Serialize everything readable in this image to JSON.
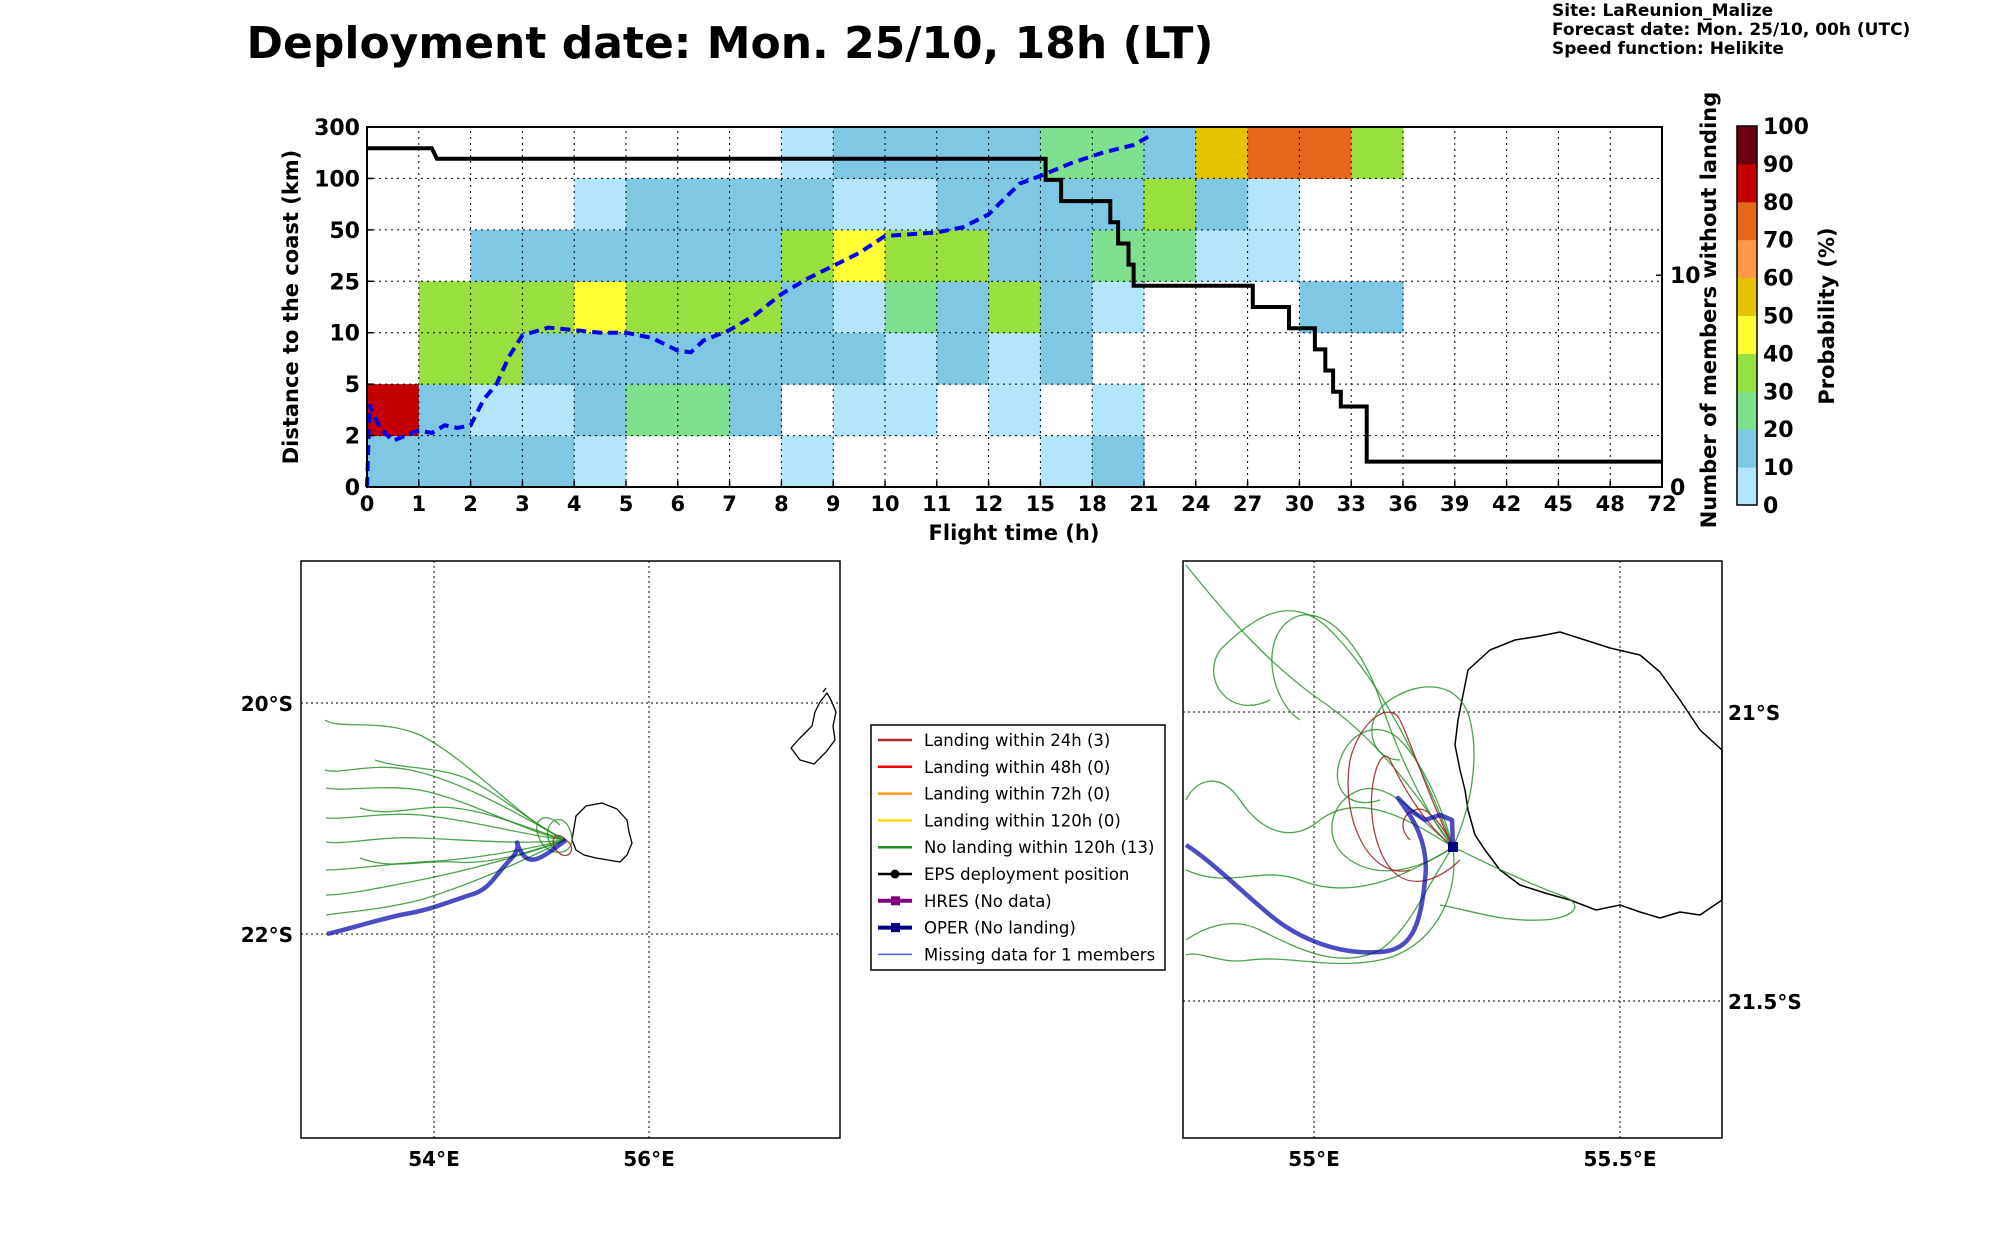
{
  "title": "Deployment date: Mon. 25/10, 18h (LT)",
  "meta": {
    "site": "Site: LaReunion_Malize",
    "forecast": "Forecast date: Mon. 25/10, 00h (UTC)",
    "speed": "Speed function: Helikite"
  },
  "chart_data": [
    {
      "type": "heatmap",
      "title": "Deployment date: Mon. 25/10, 18h (LT)",
      "xlabel": "Flight time (h)",
      "ylabel": "Distance to the coast (km)",
      "y2label": "Number of members without landing",
      "colorbar_label": "Probability (%)",
      "x_ticks": [
        "0",
        "1",
        "2",
        "3",
        "4",
        "5",
        "6",
        "7",
        "8",
        "9",
        "10",
        "11",
        "12",
        "15",
        "18",
        "21",
        "24",
        "27",
        "30",
        "33",
        "36",
        "39",
        "42",
        "45",
        "48",
        "72"
      ],
      "y_ticks": [
        "0",
        "2",
        "5",
        "10",
        "25",
        "50",
        "100",
        "300"
      ],
      "y2_ticks": [
        "0",
        "10"
      ],
      "y2lim": [
        0,
        17
      ],
      "colorbar_ticks": [
        "0",
        "10",
        "20",
        "30",
        "40",
        "50",
        "60",
        "70",
        "80",
        "90",
        "100"
      ],
      "colorbar_colors": [
        "#b3e5fc",
        "#7ec8e3",
        "#7ee08f",
        "#97e040",
        "#ffff33",
        "#e6c200",
        "#ff9945",
        "#e8661a",
        "#c40000",
        "#6a0010"
      ],
      "grid": true,
      "cells": [
        [
          0,
          0,
          10
        ],
        [
          1,
          0,
          10
        ],
        [
          2,
          0,
          10
        ],
        [
          3,
          0,
          10
        ],
        [
          4,
          0,
          0
        ],
        [
          8,
          0,
          0
        ],
        [
          13,
          0,
          0
        ],
        [
          14,
          0,
          10
        ],
        [
          0,
          1,
          80
        ],
        [
          1,
          1,
          10
        ],
        [
          2,
          1,
          0
        ],
        [
          3,
          1,
          0
        ],
        [
          4,
          1,
          10
        ],
        [
          5,
          1,
          20
        ],
        [
          6,
          1,
          20
        ],
        [
          7,
          1,
          10
        ],
        [
          9,
          1,
          0
        ],
        [
          10,
          1,
          0
        ],
        [
          12,
          1,
          0
        ],
        [
          14,
          1,
          0
        ],
        [
          1,
          2,
          30
        ],
        [
          2,
          2,
          30
        ],
        [
          3,
          2,
          10
        ],
        [
          4,
          2,
          10
        ],
        [
          5,
          2,
          10
        ],
        [
          6,
          2,
          10
        ],
        [
          7,
          2,
          10
        ],
        [
          8,
          2,
          10
        ],
        [
          9,
          2,
          10
        ],
        [
          10,
          2,
          0
        ],
        [
          11,
          2,
          10
        ],
        [
          12,
          2,
          0
        ],
        [
          13,
          2,
          10
        ],
        [
          1,
          3,
          30
        ],
        [
          2,
          3,
          30
        ],
        [
          3,
          3,
          30
        ],
        [
          4,
          3,
          40
        ],
        [
          5,
          3,
          30
        ],
        [
          6,
          3,
          30
        ],
        [
          7,
          3,
          30
        ],
        [
          8,
          3,
          10
        ],
        [
          9,
          3,
          0
        ],
        [
          10,
          3,
          20
        ],
        [
          11,
          3,
          10
        ],
        [
          12,
          3,
          30
        ],
        [
          13,
          3,
          10
        ],
        [
          14,
          3,
          0
        ],
        [
          18,
          3,
          10
        ],
        [
          19,
          3,
          10
        ],
        [
          2,
          4,
          10
        ],
        [
          3,
          4,
          10
        ],
        [
          4,
          4,
          10
        ],
        [
          5,
          4,
          10
        ],
        [
          6,
          4,
          10
        ],
        [
          7,
          4,
          10
        ],
        [
          8,
          4,
          30
        ],
        [
          9,
          4,
          40
        ],
        [
          10,
          4,
          30
        ],
        [
          11,
          4,
          30
        ],
        [
          12,
          4,
          10
        ],
        [
          13,
          4,
          10
        ],
        [
          14,
          4,
          20
        ],
        [
          15,
          4,
          20
        ],
        [
          16,
          4,
          0
        ],
        [
          17,
          4,
          0
        ],
        [
          4,
          5,
          0
        ],
        [
          5,
          5,
          10
        ],
        [
          6,
          5,
          10
        ],
        [
          7,
          5,
          10
        ],
        [
          8,
          5,
          10
        ],
        [
          9,
          5,
          0
        ],
        [
          10,
          5,
          0
        ],
        [
          11,
          5,
          10
        ],
        [
          12,
          5,
          10
        ],
        [
          13,
          5,
          10
        ],
        [
          14,
          5,
          10
        ],
        [
          15,
          5,
          30
        ],
        [
          16,
          5,
          10
        ],
        [
          17,
          5,
          0
        ],
        [
          8,
          6,
          0
        ],
        [
          9,
          6,
          10
        ],
        [
          10,
          6,
          10
        ],
        [
          11,
          6,
          10
        ],
        [
          12,
          6,
          10
        ],
        [
          13,
          6,
          20
        ],
        [
          14,
          6,
          20
        ],
        [
          15,
          6,
          10
        ],
        [
          16,
          6,
          50
        ],
        [
          17,
          6,
          70
        ],
        [
          18,
          6,
          70
        ],
        [
          19,
          6,
          30
        ]
      ],
      "series": [
        {
          "name": "Distance (dashed)",
          "style": "dashed",
          "color": "#0000ee",
          "points": [
            [
              0,
              0
            ],
            [
              0.05,
              1.6
            ],
            [
              0.25,
              1.15
            ],
            [
              0.5,
              0.9
            ],
            [
              0.75,
              1.0
            ],
            [
              1.0,
              1.1
            ],
            [
              1.25,
              1.05
            ],
            [
              1.5,
              1.2
            ],
            [
              1.75,
              1.15
            ],
            [
              2.0,
              1.2
            ],
            [
              2.25,
              1.7
            ],
            [
              2.5,
              2.0
            ],
            [
              2.75,
              2.55
            ],
            [
              3,
              2.95
            ],
            [
              3.5,
              3.1
            ],
            [
              4,
              3.05
            ],
            [
              4.5,
              3.0
            ],
            [
              5,
              3.0
            ],
            [
              5.5,
              2.9
            ],
            [
              6,
              2.65
            ],
            [
              6.25,
              2.62
            ],
            [
              6.5,
              2.85
            ],
            [
              7,
              3.05
            ],
            [
              7.5,
              3.35
            ],
            [
              8,
              3.75
            ],
            [
              8.5,
              4.05
            ],
            [
              9,
              4.3
            ],
            [
              9.5,
              4.55
            ],
            [
              10,
              4.88
            ],
            [
              11,
              4.95
            ],
            [
              11.5,
              5.05
            ],
            [
              12,
              5.3
            ],
            [
              12.3,
              5.6
            ],
            [
              12.6,
              5.9
            ],
            [
              13,
              6.05
            ],
            [
              13.6,
              6.3
            ],
            [
              14.2,
              6.5
            ],
            [
              14.8,
              6.65
            ],
            [
              15.1,
              6.82
            ]
          ]
        },
        {
          "name": "Members without landing",
          "style": "solid",
          "color": "#000000",
          "y_axis": "right",
          "points": [
            [
              0,
              16
            ],
            [
              1.25,
              16
            ],
            [
              1.35,
              15.5
            ],
            [
              13.1,
              15.5
            ],
            [
              13.1,
              14.5
            ],
            [
              13.4,
              14.5
            ],
            [
              13.4,
              13.5
            ],
            [
              14.35,
              13.5
            ],
            [
              14.35,
              12.5
            ],
            [
              14.5,
              12.5
            ],
            [
              14.5,
              11.5
            ],
            [
              14.7,
              11.5
            ],
            [
              14.7,
              10.5
            ],
            [
              14.8,
              10.5
            ],
            [
              14.8,
              9.5
            ],
            [
              17.1,
              9.5
            ],
            [
              17.1,
              8.5
            ],
            [
              17.8,
              8.5
            ],
            [
              17.8,
              7.5
            ],
            [
              18.3,
              7.5
            ],
            [
              18.3,
              6.5
            ],
            [
              18.5,
              6.5
            ],
            [
              18.5,
              5.5
            ],
            [
              18.65,
              5.5
            ],
            [
              18.65,
              4.5
            ],
            [
              18.8,
              4.5
            ],
            [
              18.8,
              3.8
            ],
            [
              19.3,
              3.8
            ],
            [
              19.3,
              1.2
            ],
            [
              25,
              1.2
            ]
          ]
        }
      ]
    },
    {
      "type": "map",
      "x_ticks": [
        "54°E",
        "56°E"
      ],
      "y_ticks": [
        "20°S",
        "22°S"
      ],
      "lon_range": [
        52.8,
        57.8
      ],
      "lat_range": [
        -18.8,
        -23.8
      ]
    },
    {
      "type": "map",
      "x_ticks": [
        "55°E",
        "55.5°E"
      ],
      "y_ticks": [
        "21°S",
        "21.5°S"
      ],
      "lon_range": [
        54.75,
        55.75
      ],
      "lat_range": [
        -20.75,
        -21.75
      ]
    }
  ],
  "legend": [
    {
      "label": "Landing within 24h (3)",
      "color": "#a52a2a",
      "marker": "line"
    },
    {
      "label": "Landing within 48h (0)",
      "color": "#ff0000",
      "marker": "line"
    },
    {
      "label": "Landing within 72h (0)",
      "color": "#ff9900",
      "marker": "line"
    },
    {
      "label": "Landing within 120h (0)",
      "color": "#ffdd00",
      "marker": "line"
    },
    {
      "label": "No landing within 120h (13)",
      "color": "#228b22",
      "marker": "line"
    },
    {
      "label": "EPS deployment position",
      "color": "#000000",
      "marker": "circle"
    },
    {
      "label": "HRES (No data)",
      "color": "#800080",
      "marker": "square"
    },
    {
      "label": "OPER (No landing)",
      "color": "#000080",
      "marker": "square"
    },
    {
      "label": "Missing data for 1 members",
      "color": "#4a5fe0",
      "marker": "thin"
    }
  ]
}
